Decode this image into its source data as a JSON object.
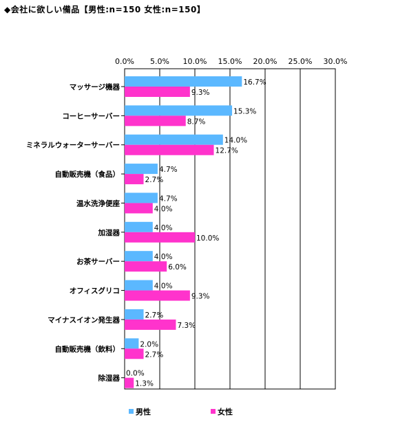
{
  "title": "◆会社に欲しい備品【男性:n=150 女性:n=150】",
  "chart_data": {
    "type": "bar",
    "orientation": "horizontal",
    "categories": [
      "マッサージ機器",
      "コーヒーサーバー",
      "ミネラルウォーターサーバー",
      "自動販売機（食品）",
      "温水洗浄便座",
      "加湿器",
      "お茶サーバー",
      "オフィスグリコ",
      "マイナスイオン発生器",
      "自動販売機（飲料）",
      "除湿器"
    ],
    "series": [
      {
        "name": "男性",
        "color": "#5bb8ff",
        "values": [
          16.7,
          15.3,
          14.0,
          4.7,
          4.7,
          4.0,
          4.0,
          4.0,
          2.7,
          2.0,
          0.0
        ],
        "labels": [
          "16.7%",
          "15.3%",
          "14.0%",
          "4.7%",
          "4.7%",
          "4.0%",
          "4.0%",
          "4.0%",
          "2.7%",
          "2.0%",
          "0.0%"
        ]
      },
      {
        "name": "女性",
        "color": "#ff33cc",
        "values": [
          9.3,
          8.7,
          12.7,
          2.7,
          4.0,
          10.0,
          6.0,
          9.3,
          7.3,
          2.7,
          1.3
        ],
        "labels": [
          "9.3%",
          "8.7%",
          "12.7%",
          "2.7%",
          "4.0%",
          "10.0%",
          "6.0%",
          "9.3%",
          "7.3%",
          "2.7%",
          "1.3%"
        ]
      }
    ],
    "xlim": [
      0,
      30
    ],
    "xticks": [
      "0.0%",
      "5.0%",
      "10.0%",
      "15.0%",
      "20.0%",
      "25.0%",
      "30.0%"
    ],
    "xtick_values": [
      0,
      5,
      10,
      15,
      20,
      25,
      30
    ],
    "grid": true,
    "legend_position": "bottom"
  }
}
